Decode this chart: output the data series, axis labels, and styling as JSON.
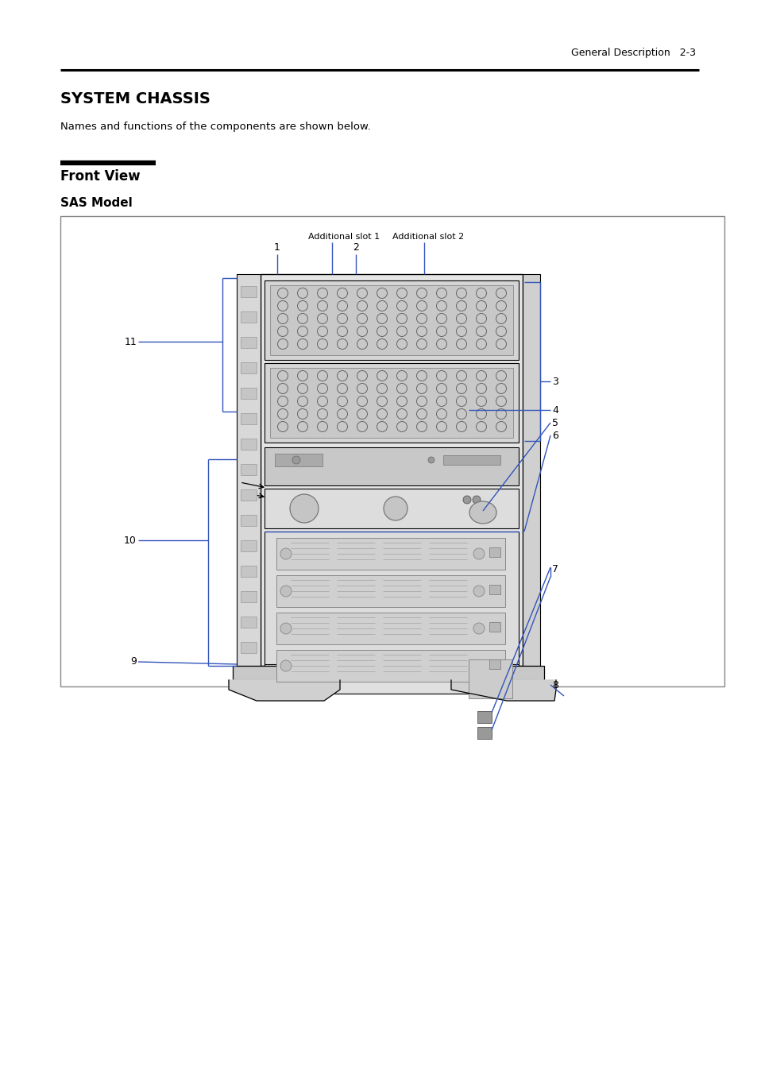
{
  "page_header": "General Description   2-3",
  "title": "SYSTEM CHASSIS",
  "subtitle": "Names and functions of the components are shown below.",
  "section_title": "Front View",
  "subsection_title": "SAS Model",
  "bg_color": "#ffffff",
  "text_color": "#000000",
  "blue_color": "#3355bb",
  "chassis_gray": "#e0e0e0",
  "chassis_dark": "#b8b8b8",
  "chassis_mid": "#cccccc",
  "chassis_light": "#ebebeb",
  "hole_ec": "#777777",
  "drive_fill": "#d4d4d4"
}
